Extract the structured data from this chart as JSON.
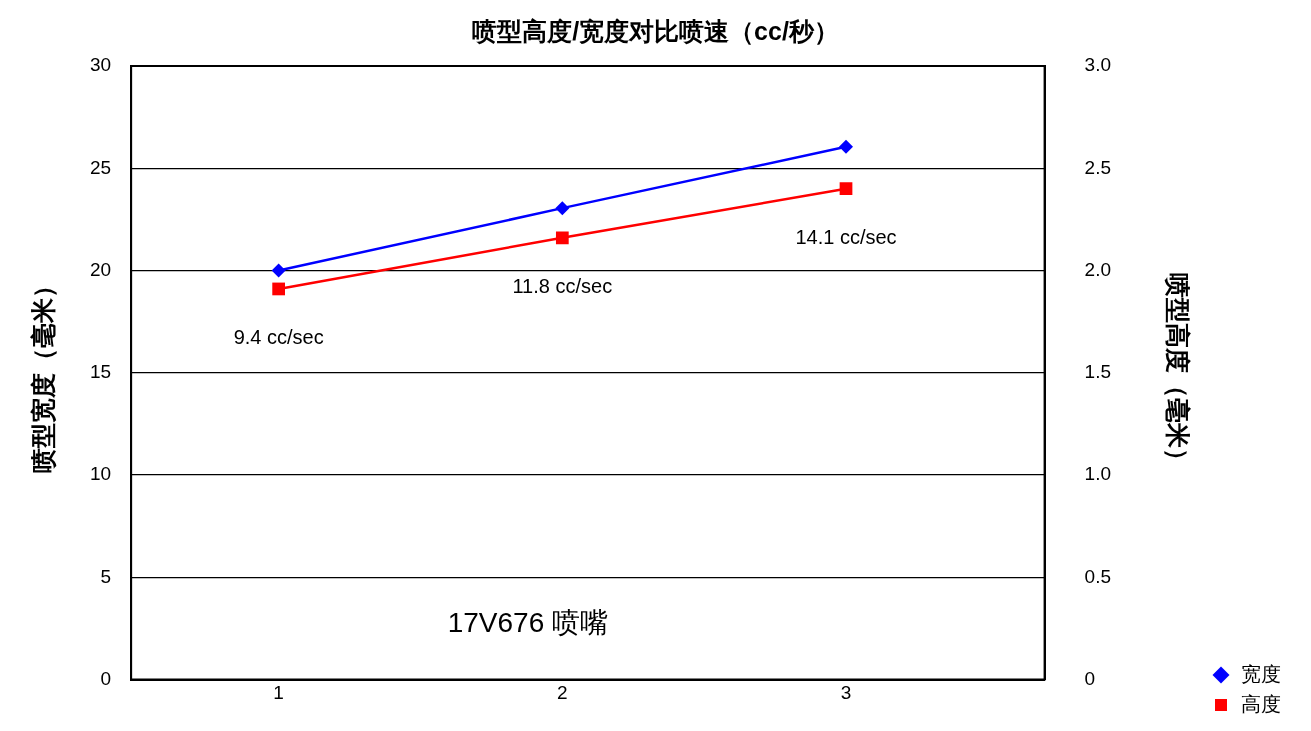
{
  "chart_data": {
    "type": "line",
    "title": "喷型高度/宽度对比喷速（cc/秒）",
    "ylabel": "喷型宽度（毫米）",
    "y2label": "喷型高度（毫米）",
    "x": [
      1,
      2,
      3
    ],
    "series": [
      {
        "name": "宽度",
        "color": "#0000ff",
        "values": [
          20,
          23.05,
          26.05
        ],
        "marker": "diamond"
      },
      {
        "name": "高度",
        "color": "#ff0000",
        "values": [
          1.91,
          2.16,
          2.4
        ],
        "marker": "square",
        "axis": "y2"
      }
    ],
    "xlim": [
      0.48,
      3.7
    ],
    "xticks": [
      1,
      2,
      3
    ],
    "ylim": [
      0,
      30
    ],
    "yticks": [
      0,
      5,
      10,
      15,
      20,
      25,
      30
    ],
    "y2lim": [
      0,
      3
    ],
    "y2ticks": [
      {
        "value": 0,
        "label": "0"
      },
      0.5,
      {
        "value": 1,
        "label": "1.0"
      },
      1.5,
      {
        "value": 2,
        "label": "2.0"
      },
      2.5,
      {
        "value": 3,
        "label": "3.0"
      }
    ],
    "grid": "y",
    "legend": "bottom right",
    "line_style": "solid",
    "annotations": [
      "9.4 cc/sec",
      "11.8 cc/sec",
      "14.1 cc/sec",
      "17V676 喷嘴"
    ]
  }
}
